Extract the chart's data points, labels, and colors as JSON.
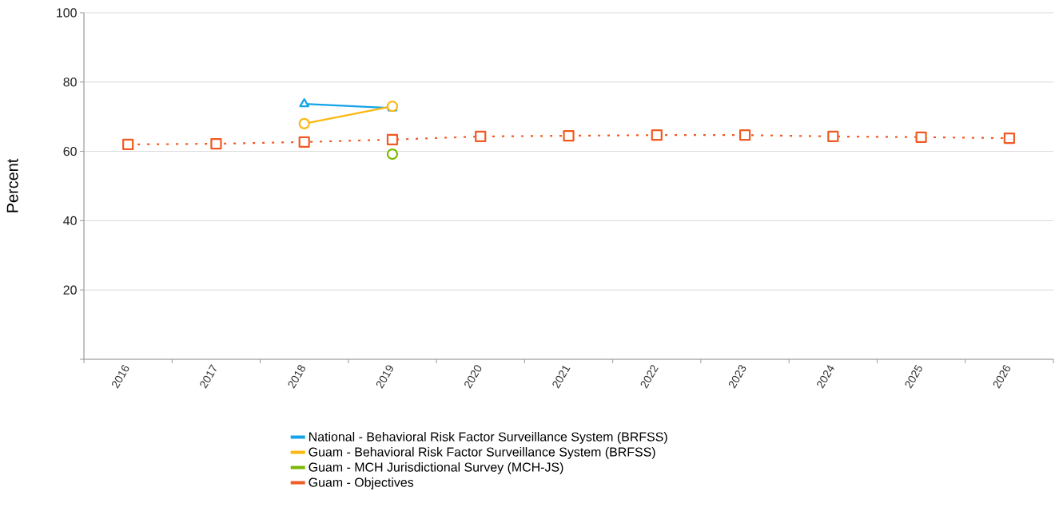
{
  "chart_data": {
    "type": "line",
    "ylabel": "Percent",
    "categories": [
      "2016",
      "2017",
      "2018",
      "2019",
      "2020",
      "2021",
      "2022",
      "2023",
      "2024",
      "2025",
      "2026"
    ],
    "series": [
      {
        "name": "National - Behavioral Risk Factor Surveillance System (BRFSS)",
        "color": "#13a3e6",
        "marker": "triangle",
        "line_style": "solid",
        "values": [
          null,
          null,
          73.7,
          72.5,
          null,
          null,
          null,
          null,
          null,
          null,
          null
        ]
      },
      {
        "name": "Guam - Behavioral Risk Factor Surveillance System (BRFSS)",
        "color": "#fbb812",
        "marker": "circle",
        "line_style": "solid",
        "values": [
          null,
          null,
          68.0,
          73.0,
          null,
          null,
          null,
          null,
          null,
          null,
          null
        ]
      },
      {
        "name": "Guam - MCH Jurisdictional Survey (MCH-JS)",
        "color": "#7ab800",
        "marker": "circle",
        "line_style": "solid",
        "values": [
          null,
          null,
          null,
          59.2,
          null,
          null,
          null,
          null,
          null,
          null,
          null
        ]
      },
      {
        "name": "Guam - Objectives",
        "color": "#f15a22",
        "marker": "square",
        "line_style": "dotted",
        "values": [
          62.0,
          62.2,
          62.7,
          63.4,
          64.3,
          64.5,
          64.7,
          64.7,
          64.3,
          64.1,
          63.8
        ]
      }
    ],
    "ylim": [
      0,
      100
    ],
    "yticks": [
      {
        "value": 0,
        "label": null
      },
      20,
      40,
      60,
      80,
      100
    ],
    "grid": "y",
    "legend": "bottom"
  }
}
